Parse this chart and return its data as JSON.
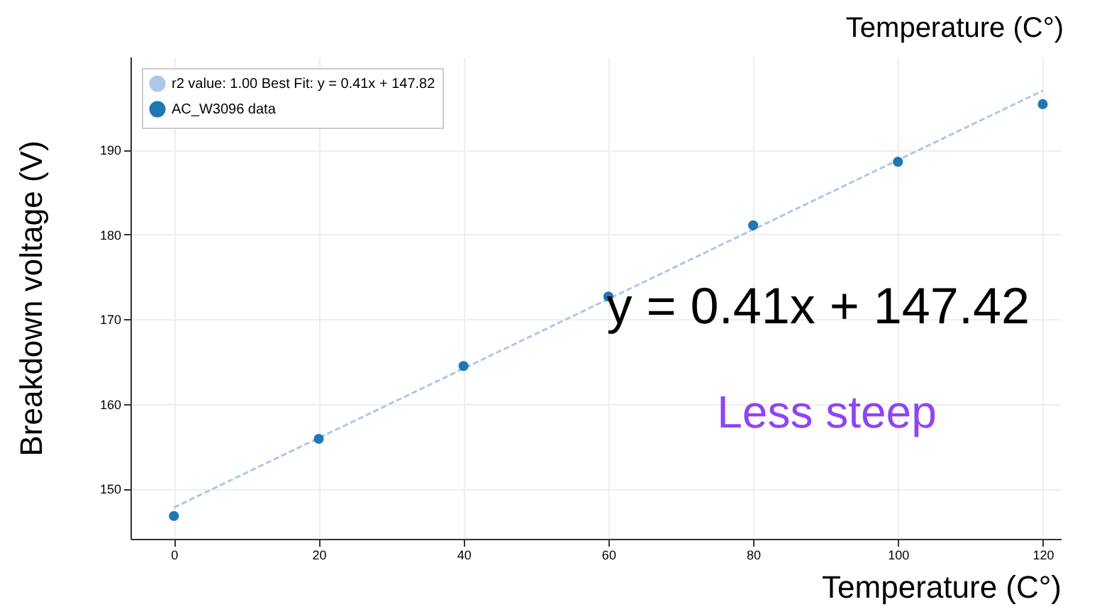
{
  "chart_data": {
    "type": "scatter",
    "xlabel": "Temperature (C°)",
    "ylabel": "Breakdown voltage (V)",
    "xlim": [
      -6,
      122.5
    ],
    "ylim": [
      144.1,
      201
    ],
    "xticks": [
      0,
      20,
      40,
      60,
      80,
      100,
      120
    ],
    "yticks": [
      150,
      160,
      170,
      180,
      190
    ],
    "grid": true,
    "legend": "top left",
    "annotations": [
      "y = 0.41x + 147.42",
      "Less steep",
      "Temperature (C°)"
    ],
    "series": [
      {
        "name": "r2 value: 1.00 Best Fit: y = 0.41x + 147.82",
        "type": "line",
        "line_style": "dashed",
        "marker": "none",
        "color": "#aec7e8",
        "x": [
          0,
          120
        ],
        "values": [
          147.8,
          197.0
        ]
      },
      {
        "name": "AC_W3096 data",
        "marker": "circle",
        "color": "#1f77b4",
        "x": [
          0,
          20,
          40,
          60,
          80,
          100,
          120
        ],
        "values": [
          146.8,
          155.9,
          164.5,
          172.7,
          181.1,
          188.6,
          195.4
        ],
        "errors": [
          0.3,
          0.3,
          0.3,
          0.3,
          0.3,
          0.3,
          0.3
        ]
      }
    ]
  }
}
